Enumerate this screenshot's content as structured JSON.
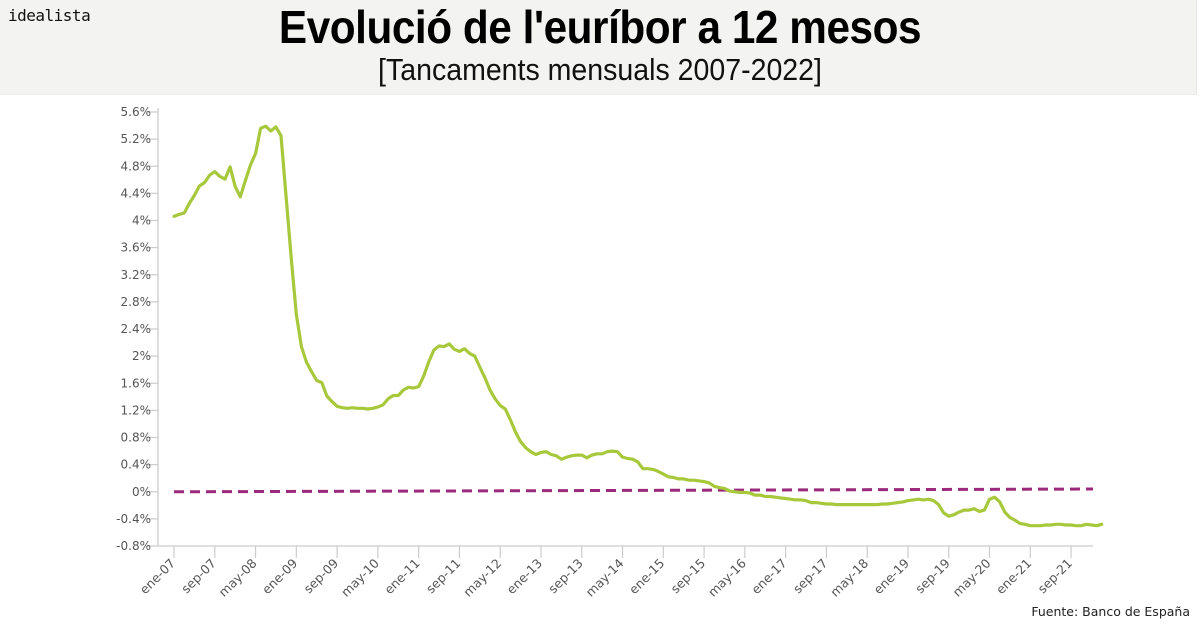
{
  "header": {
    "brand": "idealista",
    "title": "Evolució de l'euríbor a 12 mesos",
    "subtitle": "[Tancaments mensuals 2007-2022]"
  },
  "source": "Fuente: Banco de España",
  "colors": {
    "series": "#a8c83c",
    "reference": "#9c2a7c",
    "axis": "#cccccc",
    "tick_text": "#555555",
    "header_bg": "#f3f3f2"
  },
  "chart_data": {
    "type": "line",
    "title": "Evolució de l'euríbor a 12 mesos",
    "subtitle": "[Tancaments mensuals 2007-2022]",
    "xlabel": "",
    "ylabel": "",
    "ylim": [
      -0.8,
      5.6
    ],
    "yticks": [
      5.6,
      5.2,
      4.8,
      4.4,
      4.0,
      3.6,
      3.2,
      2.8,
      2.4,
      2.0,
      1.6,
      1.2,
      0.8,
      0.4,
      0.0,
      -0.4,
      -0.8
    ],
    "ytick_labels": [
      "5.6%",
      "5.2%",
      "4.8%",
      "4.4%",
      "4%",
      "3.6%",
      "3.2%",
      "2.8%",
      "2.4%",
      "2%",
      "1.6%",
      "1.2%",
      "0.8%",
      "0.4%",
      "0%",
      "-0.4%",
      "-0.8%"
    ],
    "xtick_labels": [
      "ene-07",
      "sep-07",
      "may-08",
      "ene-09",
      "sep-09",
      "may-10",
      "ene-11",
      "sep-11",
      "may-12",
      "ene-13",
      "sep-13",
      "may-14",
      "ene-15",
      "sep-15",
      "may-16",
      "ene-17",
      "sep-17",
      "may-18",
      "ene-19",
      "sep-19",
      "may-20",
      "ene-21",
      "sep-21"
    ],
    "xtick_step_months": 8,
    "grid": false,
    "legend": "none",
    "x_start": "ene-07",
    "x_end": "ene-22",
    "series": [
      {
        "name": "Euríbor 12 meses",
        "color": "#a8c83c",
        "style": "solid",
        "values": [
          4.06,
          4.09,
          4.11,
          4.25,
          4.37,
          4.51,
          4.56,
          4.67,
          4.72,
          4.65,
          4.61,
          4.79,
          4.5,
          4.35,
          4.59,
          4.82,
          4.99,
          5.36,
          5.39,
          5.32,
          5.38,
          5.25,
          4.35,
          3.45,
          2.62,
          2.14,
          1.91,
          1.77,
          1.64,
          1.61,
          1.41,
          1.33,
          1.26,
          1.24,
          1.23,
          1.24,
          1.23,
          1.23,
          1.22,
          1.23,
          1.25,
          1.28,
          1.37,
          1.42,
          1.42,
          1.5,
          1.54,
          1.53,
          1.55,
          1.71,
          1.92,
          2.09,
          2.15,
          2.14,
          2.18,
          2.1,
          2.07,
          2.11,
          2.04,
          2.0,
          1.84,
          1.68,
          1.5,
          1.37,
          1.27,
          1.22,
          1.06,
          0.88,
          0.74,
          0.65,
          0.59,
          0.55,
          0.58,
          0.59,
          0.55,
          0.53,
          0.48,
          0.51,
          0.53,
          0.54,
          0.54,
          0.5,
          0.54,
          0.56,
          0.56,
          0.59,
          0.6,
          0.59,
          0.51,
          0.49,
          0.48,
          0.44,
          0.34,
          0.34,
          0.33,
          0.3,
          0.26,
          0.22,
          0.21,
          0.19,
          0.19,
          0.17,
          0.17,
          0.16,
          0.15,
          0.13,
          0.08,
          0.06,
          0.05,
          0.01,
          0.0,
          -0.01,
          -0.01,
          -0.02,
          -0.05,
          -0.05,
          -0.07,
          -0.07,
          -0.08,
          -0.09,
          -0.1,
          -0.11,
          -0.12,
          -0.12,
          -0.13,
          -0.16,
          -0.16,
          -0.17,
          -0.18,
          -0.18,
          -0.19,
          -0.19,
          -0.19,
          -0.19,
          -0.19,
          -0.19,
          -0.19,
          -0.19,
          -0.19,
          -0.18,
          -0.18,
          -0.17,
          -0.16,
          -0.15,
          -0.13,
          -0.12,
          -0.11,
          -0.12,
          -0.11,
          -0.13,
          -0.19,
          -0.31,
          -0.36,
          -0.34,
          -0.3,
          -0.27,
          -0.27,
          -0.25,
          -0.29,
          -0.27,
          -0.11,
          -0.08,
          -0.15,
          -0.3,
          -0.38,
          -0.42,
          -0.47,
          -0.48,
          -0.5,
          -0.5,
          -0.5,
          -0.49,
          -0.49,
          -0.48,
          -0.48,
          -0.49,
          -0.49,
          -0.5,
          -0.5,
          -0.48,
          -0.49,
          -0.5,
          -0.48
        ]
      },
      {
        "name": "Referencia 0%",
        "color": "#9c2a7c",
        "style": "dashed",
        "start_value": 0.0,
        "end_value": 0.04
      }
    ]
  }
}
